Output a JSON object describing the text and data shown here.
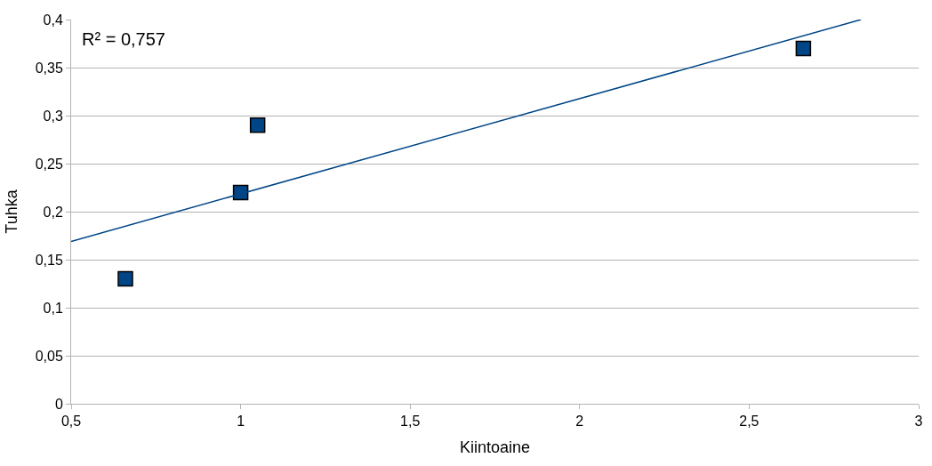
{
  "chart_data": {
    "type": "scatter",
    "xlabel": "Kiintoaine",
    "ylabel": "Tuhka",
    "xlim": [
      0.5,
      3
    ],
    "ylim": [
      0,
      0.4
    ],
    "xticks": [
      {
        "value": 0.5,
        "label": "0,5"
      },
      1,
      {
        "value": 1.5,
        "label": "1,5"
      },
      2,
      {
        "value": 2.5,
        "label": "2,5"
      },
      3
    ],
    "yticks": [
      0,
      {
        "value": 0.05,
        "label": "0,05"
      },
      {
        "value": 0.1,
        "label": "0,1"
      },
      {
        "value": 0.15,
        "label": "0,15"
      },
      {
        "value": 0.2,
        "label": "0,2"
      },
      {
        "value": 0.25,
        "label": "0,25"
      },
      {
        "value": 0.3,
        "label": "0,3"
      },
      {
        "value": 0.35,
        "label": "0,35"
      },
      {
        "value": 0.4,
        "label": "0,4"
      }
    ],
    "grid": "y",
    "series": [
      {
        "marker": "square",
        "color": "#004586",
        "x": [
          0.66,
          1.0,
          1.05,
          2.66
        ],
        "values": [
          0.13,
          0.22,
          0.29,
          0.37
        ]
      },
      {
        "type": "line",
        "color": "#004586",
        "x": [
          0.5,
          2.83
        ],
        "values": [
          0.169,
          0.4
        ]
      }
    ],
    "annotations": [
      "R² = 0,757"
    ]
  }
}
